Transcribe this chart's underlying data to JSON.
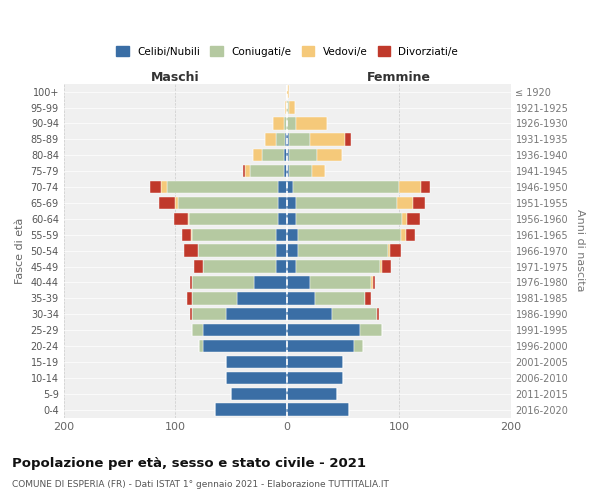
{
  "age_groups_bottom_to_top": [
    "0-4",
    "5-9",
    "10-14",
    "15-19",
    "20-24",
    "25-29",
    "30-34",
    "35-39",
    "40-44",
    "45-49",
    "50-54",
    "55-59",
    "60-64",
    "65-69",
    "70-74",
    "75-79",
    "80-84",
    "85-89",
    "90-94",
    "95-99",
    "100+"
  ],
  "birth_years_bottom_to_top": [
    "2016-2020",
    "2011-2015",
    "2006-2010",
    "2001-2005",
    "1996-2000",
    "1991-1995",
    "1986-1990",
    "1981-1985",
    "1976-1980",
    "1971-1975",
    "1966-1970",
    "1961-1965",
    "1956-1960",
    "1951-1955",
    "1946-1950",
    "1941-1945",
    "1936-1940",
    "1931-1935",
    "1926-1930",
    "1921-1925",
    "≤ 1920"
  ],
  "colors": {
    "celibi": "#3a6ea5",
    "coniugati": "#b5c9a1",
    "vedovi": "#f5c97a",
    "divorziati": "#c0392b"
  },
  "maschi_bottom_to_top": {
    "celibi": [
      65,
      50,
      55,
      55,
      75,
      75,
      55,
      45,
      30,
      10,
      10,
      10,
      8,
      8,
      8,
      3,
      3,
      2,
      0,
      0,
      0
    ],
    "coniugati": [
      0,
      0,
      0,
      0,
      4,
      10,
      30,
      40,
      55,
      65,
      70,
      75,
      80,
      90,
      100,
      30,
      20,
      8,
      3,
      0,
      0
    ],
    "vedovi": [
      0,
      0,
      0,
      0,
      0,
      0,
      0,
      0,
      0,
      0,
      0,
      1,
      1,
      2,
      5,
      5,
      8,
      10,
      10,
      2,
      0
    ],
    "divorziati": [
      0,
      0,
      0,
      0,
      0,
      0,
      2,
      5,
      2,
      8,
      12,
      8,
      12,
      15,
      10,
      2,
      0,
      0,
      0,
      0,
      0
    ]
  },
  "femmine_bottom_to_top": {
    "celibi": [
      55,
      45,
      50,
      50,
      60,
      65,
      40,
      25,
      20,
      8,
      10,
      10,
      8,
      8,
      5,
      2,
      2,
      2,
      0,
      0,
      0
    ],
    "coniugati": [
      0,
      0,
      0,
      0,
      8,
      20,
      40,
      45,
      55,
      75,
      80,
      92,
      95,
      90,
      95,
      20,
      25,
      18,
      8,
      2,
      0
    ],
    "vedovi": [
      0,
      0,
      0,
      0,
      0,
      0,
      0,
      0,
      2,
      2,
      2,
      4,
      4,
      15,
      20,
      12,
      22,
      32,
      28,
      5,
      2
    ],
    "divorziati": [
      0,
      0,
      0,
      0,
      0,
      0,
      2,
      5,
      2,
      8,
      10,
      8,
      12,
      10,
      8,
      0,
      0,
      5,
      0,
      0,
      0
    ]
  },
  "xlim": 200,
  "title": "Popolazione per età, sesso e stato civile - 2021",
  "subtitle": "COMUNE DI ESPERIA (FR) - Dati ISTAT 1° gennaio 2021 - Elaborazione TUTTITALIA.IT",
  "ylabel_left": "Fasce di età",
  "ylabel_right": "Anni di nascita",
  "xlabel_maschi": "Maschi",
  "xlabel_femmine": "Femmine",
  "legend_labels": [
    "Celibi/Nubili",
    "Coniugati/e",
    "Vedovi/e",
    "Divorziati/e"
  ],
  "background_color": "#ffffff",
  "plot_bg": "#f0f0f0",
  "grid_color": "#cccccc"
}
